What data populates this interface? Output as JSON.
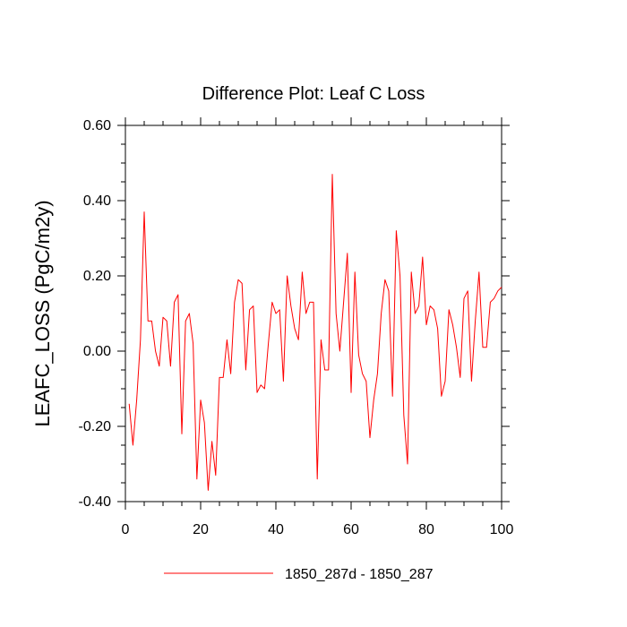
{
  "chart_data": {
    "type": "line",
    "title": "Difference Plot: Leaf C Loss",
    "xlabel": "",
    "ylabel": "LEAFC_LOSS  (PgC/m2y)",
    "xlim": [
      0,
      100
    ],
    "ylim": [
      -0.4,
      0.6
    ],
    "x_ticks": [
      0,
      20,
      40,
      60,
      80,
      100
    ],
    "x_tick_labels": [
      "0",
      "20",
      "40",
      "60",
      "80",
      "100"
    ],
    "y_ticks": [
      -0.4,
      -0.2,
      0.0,
      0.2,
      0.4,
      0.6
    ],
    "y_tick_labels": [
      "-0.40",
      "-0.20",
      "0.00",
      "0.20",
      "0.40",
      "0.60"
    ],
    "grid": false,
    "legend_position": "bottom",
    "series": [
      {
        "name": "1850_287d - 1850_287",
        "color": "#ff0000",
        "x": [
          1,
          2,
          3,
          4,
          5,
          6,
          7,
          8,
          9,
          10,
          11,
          12,
          13,
          14,
          15,
          16,
          17,
          18,
          19,
          20,
          21,
          22,
          23,
          24,
          25,
          26,
          27,
          28,
          29,
          30,
          31,
          32,
          33,
          34,
          35,
          36,
          37,
          38,
          39,
          40,
          41,
          42,
          43,
          44,
          45,
          46,
          47,
          48,
          49,
          50,
          51,
          52,
          53,
          54,
          55,
          56,
          57,
          58,
          59,
          60,
          61,
          62,
          63,
          64,
          65,
          66,
          67,
          68,
          69,
          70,
          71,
          72,
          73,
          74,
          75,
          76,
          77,
          78,
          79,
          80,
          81,
          82,
          83,
          84,
          85,
          86,
          87,
          88,
          89,
          90,
          91,
          92,
          93,
          94,
          95,
          96,
          97,
          98,
          99,
          100
        ],
        "values": [
          -0.14,
          -0.25,
          -0.13,
          0.03,
          0.37,
          0.08,
          0.08,
          0.0,
          -0.04,
          0.09,
          0.08,
          -0.04,
          0.13,
          0.15,
          -0.22,
          0.08,
          0.1,
          0.02,
          -0.34,
          -0.13,
          -0.19,
          -0.37,
          -0.24,
          -0.33,
          -0.07,
          -0.07,
          0.03,
          -0.06,
          0.13,
          0.19,
          0.18,
          -0.05,
          0.11,
          0.12,
          -0.11,
          -0.09,
          -0.1,
          0.02,
          0.13,
          0.1,
          0.11,
          -0.08,
          0.2,
          0.12,
          0.06,
          0.03,
          0.21,
          0.1,
          0.13,
          0.13,
          -0.34,
          0.03,
          -0.05,
          -0.05,
          0.47,
          0.1,
          0.0,
          0.13,
          0.26,
          -0.11,
          0.21,
          -0.01,
          -0.06,
          -0.08,
          -0.23,
          -0.13,
          -0.06,
          0.1,
          0.19,
          0.16,
          -0.12,
          0.32,
          0.2,
          -0.17,
          -0.3,
          0.21,
          0.1,
          0.12,
          0.25,
          0.07,
          0.12,
          0.11,
          0.06,
          -0.12,
          -0.08,
          0.11,
          0.07,
          0.01,
          -0.07,
          0.14,
          0.16,
          -0.08,
          0.08,
          0.21,
          0.01,
          0.01,
          0.13,
          0.14,
          0.16,
          0.17
        ]
      }
    ]
  }
}
